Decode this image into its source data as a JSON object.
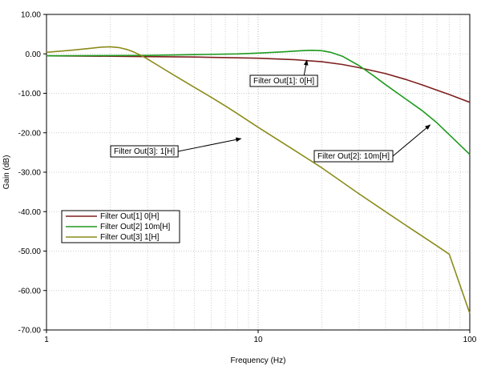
{
  "chart_data": {
    "type": "line",
    "title": "",
    "xlabel": "Frequency (Hz)",
    "ylabel": "Gain (dB)",
    "x_scale": "log",
    "xlim": [
      1,
      100
    ],
    "ylim": [
      -70,
      10
    ],
    "x_ticks": [
      1,
      10,
      100
    ],
    "x_tick_labels": [
      "1",
      "10",
      "100"
    ],
    "y_ticks": [
      10,
      0,
      -10,
      -20,
      -30,
      -40,
      -50,
      -60,
      -70
    ],
    "y_tick_labels": [
      "10.00",
      "0.00",
      "-10.00",
      "-20.00",
      "-30.00",
      "-40.00",
      "-50.00",
      "-60.00",
      "-70.00"
    ],
    "grid": true,
    "legend_position": "lower-left",
    "series": [
      {
        "name": "Filter Out[1]  0[H]",
        "color": "#7f1f1f",
        "x": [
          1,
          2,
          3,
          5,
          8,
          10,
          15,
          20,
          25,
          30,
          40,
          50,
          60,
          70,
          80,
          100
        ],
        "y": [
          -0.5,
          -0.6,
          -0.7,
          -0.8,
          -1.0,
          -1.1,
          -1.5,
          -2.0,
          -2.7,
          -3.5,
          -5.0,
          -6.5,
          -7.9,
          -9.2,
          -10.3,
          -12.3
        ]
      },
      {
        "name": "Filter Out[2]  10m[H]",
        "color": "#1e9a1e",
        "x": [
          1,
          3,
          5,
          8,
          10,
          13,
          16,
          18,
          20,
          22,
          25,
          30,
          35,
          40,
          50,
          60,
          70,
          80,
          100
        ],
        "y": [
          -0.5,
          -0.4,
          -0.2,
          0.0,
          0.2,
          0.5,
          0.8,
          0.9,
          0.8,
          0.4,
          -0.6,
          -3.0,
          -5.5,
          -7.8,
          -11.5,
          -14.5,
          -17.5,
          -20.5,
          -25.5
        ]
      },
      {
        "name": "Filter Out[3]  1[H]",
        "color": "#8b8b1a",
        "x": [
          1,
          1.3,
          1.6,
          1.8,
          2.0,
          2.2,
          2.4,
          2.6,
          2.8,
          3.0,
          3.5,
          4,
          5,
          6,
          7,
          8,
          10,
          15,
          20,
          30,
          40,
          50,
          60,
          70,
          80,
          100
        ],
        "y": [
          0.4,
          0.9,
          1.4,
          1.7,
          1.8,
          1.6,
          1.1,
          0.4,
          -0.4,
          -1.3,
          -3.5,
          -5.4,
          -8.5,
          -11.0,
          -13.2,
          -15.2,
          -18.6,
          -24.6,
          -28.9,
          -35.5,
          -40.0,
          -43.5,
          -46.3,
          -48.7,
          -50.8,
          -65.8
        ]
      }
    ],
    "annotations": [
      {
        "text": "Filter Out[1]: 0[H]",
        "x": 17,
        "y": -1.6
      },
      {
        "text": "Filter Out[2]: 10m[H]",
        "x": 65,
        "y": -18.0
      },
      {
        "text": "Filter Out[3]: 1[H]",
        "x": 8.3,
        "y": -21.5
      }
    ]
  }
}
